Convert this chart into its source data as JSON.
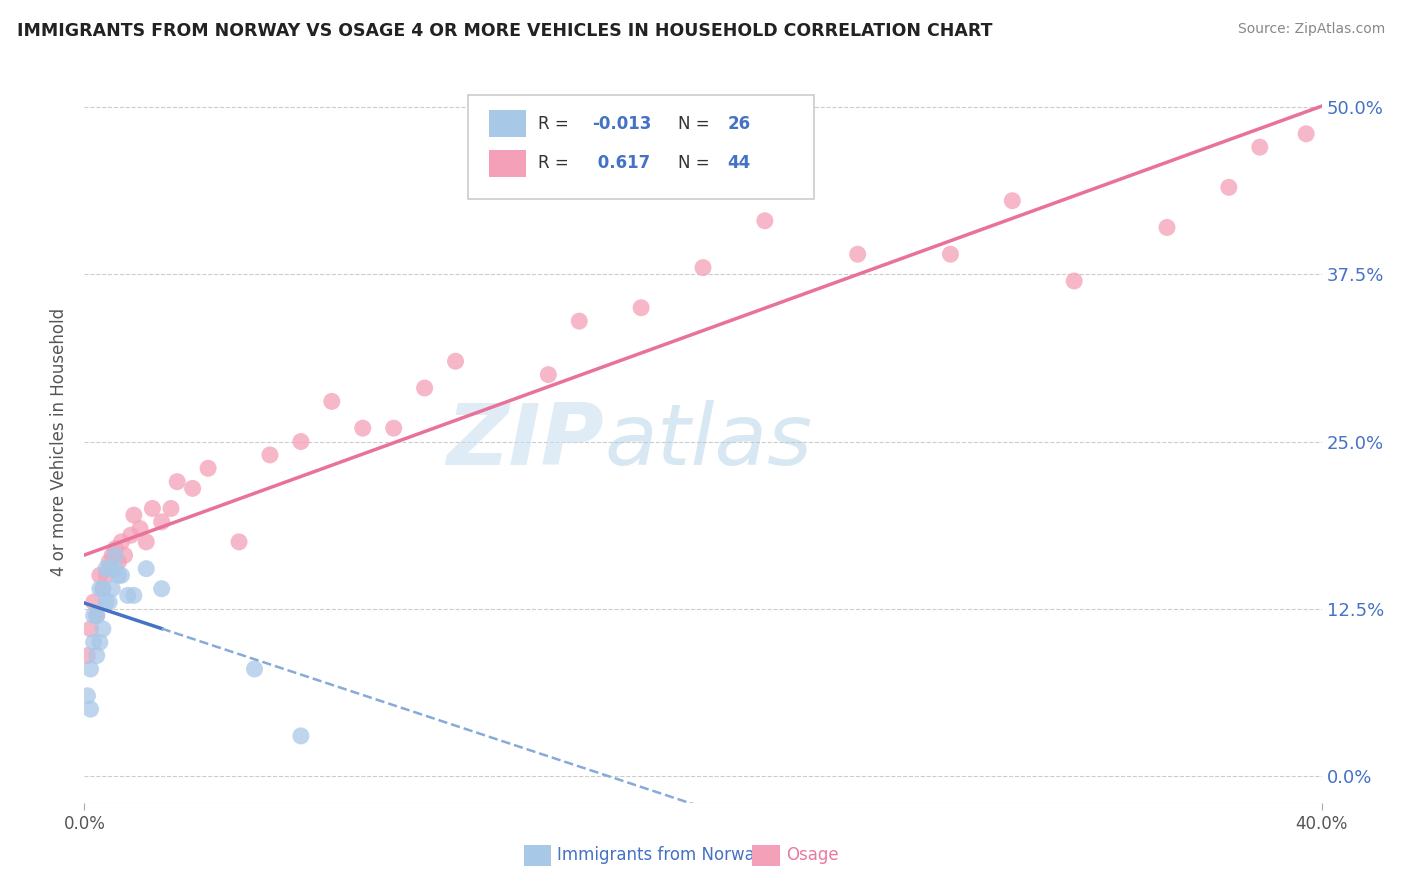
{
  "title": "IMMIGRANTS FROM NORWAY VS OSAGE 4 OR MORE VEHICLES IN HOUSEHOLD CORRELATION CHART",
  "source_text": "Source: ZipAtlas.com",
  "ylabel_label": "4 or more Vehicles in Household",
  "legend_labels": [
    "Immigrants from Norway",
    "Osage"
  ],
  "r_norway": -0.013,
  "n_norway": 26,
  "r_osage": 0.617,
  "n_osage": 44,
  "color_norway": "#a8c8e8",
  "color_osage": "#f4a0b8",
  "line_color_norway_solid": "#4472c4",
  "line_color_norway_dashed": "#88aad8",
  "line_color_osage": "#e8729a",
  "watermark_zip": "ZIP",
  "watermark_atlas": "atlas",
  "watermark_color": "#c8e4f4",
  "background_color": "#ffffff",
  "norway_x": [
    0.001,
    0.002,
    0.002,
    0.003,
    0.003,
    0.004,
    0.004,
    0.005,
    0.005,
    0.006,
    0.006,
    0.007,
    0.007,
    0.008,
    0.008,
    0.009,
    0.01,
    0.01,
    0.011,
    0.012,
    0.014,
    0.016,
    0.02,
    0.025,
    0.055,
    0.07
  ],
  "norway_y": [
    0.06,
    0.05,
    0.08,
    0.1,
    0.12,
    0.09,
    0.12,
    0.1,
    0.14,
    0.11,
    0.14,
    0.13,
    0.155,
    0.13,
    0.155,
    0.14,
    0.155,
    0.165,
    0.15,
    0.15,
    0.135,
    0.135,
    0.155,
    0.14,
    0.08,
    0.03
  ],
  "osage_x": [
    0.001,
    0.002,
    0.003,
    0.004,
    0.005,
    0.006,
    0.007,
    0.008,
    0.009,
    0.01,
    0.011,
    0.012,
    0.013,
    0.015,
    0.016,
    0.018,
    0.02,
    0.022,
    0.025,
    0.028,
    0.03,
    0.035,
    0.04,
    0.05,
    0.06,
    0.07,
    0.08,
    0.09,
    0.1,
    0.11,
    0.12,
    0.15,
    0.16,
    0.18,
    0.2,
    0.22,
    0.25,
    0.28,
    0.3,
    0.32,
    0.35,
    0.37,
    0.38,
    0.395
  ],
  "osage_y": [
    0.09,
    0.11,
    0.13,
    0.12,
    0.15,
    0.14,
    0.15,
    0.16,
    0.165,
    0.17,
    0.16,
    0.175,
    0.165,
    0.18,
    0.195,
    0.185,
    0.175,
    0.2,
    0.19,
    0.2,
    0.22,
    0.215,
    0.23,
    0.175,
    0.24,
    0.25,
    0.28,
    0.26,
    0.26,
    0.29,
    0.31,
    0.3,
    0.34,
    0.35,
    0.38,
    0.415,
    0.39,
    0.39,
    0.43,
    0.37,
    0.41,
    0.44,
    0.47,
    0.48
  ],
  "xlim": [
    0.0,
    0.4
  ],
  "ylim": [
    -0.02,
    0.52
  ],
  "ytick_vals": [
    0.0,
    0.125,
    0.25,
    0.375,
    0.5
  ],
  "ytick_labels": [
    "0.0%",
    "12.5%",
    "25.0%",
    "37.5%",
    "50.0%"
  ]
}
